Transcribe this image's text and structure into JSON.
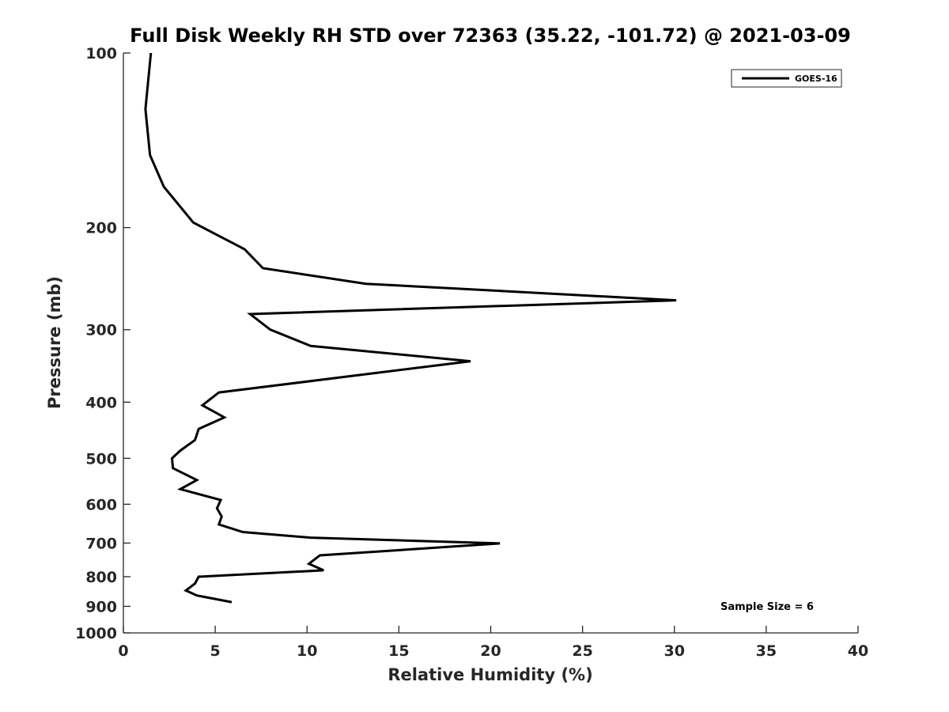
{
  "chart_data": {
    "type": "line",
    "title": "Full Disk Weekly RH STD over 72363 (35.22, -101.72) @ 2021-03-09",
    "xlabel": "Relative Humidity (%)",
    "ylabel": "Pressure (mb)",
    "xlim": [
      0,
      40
    ],
    "ylim": [
      100,
      1000
    ],
    "y_scale": "log",
    "y_reversed": true,
    "x_ticks": [
      0,
      5,
      10,
      15,
      20,
      25,
      30,
      35,
      40
    ],
    "y_ticks": [
      100,
      200,
      300,
      400,
      500,
      600,
      700,
      800,
      900,
      1000
    ],
    "grid": false,
    "legend_position": "top-right",
    "annotation": "Sample Size = 6",
    "series": [
      {
        "name": "GOES-16",
        "color": "#000000",
        "points": [
          {
            "rh": 1.5,
            "p": 100
          },
          {
            "rh": 1.2,
            "p": 125
          },
          {
            "rh": 1.45,
            "p": 150
          },
          {
            "rh": 2.2,
            "p": 170
          },
          {
            "rh": 3.8,
            "p": 196
          },
          {
            "rh": 6.6,
            "p": 218
          },
          {
            "rh": 7.6,
            "p": 235
          },
          {
            "rh": 13.2,
            "p": 250
          },
          {
            "rh": 30.1,
            "p": 267
          },
          {
            "rh": 6.9,
            "p": 282
          },
          {
            "rh": 8.0,
            "p": 300
          },
          {
            "rh": 10.2,
            "p": 320
          },
          {
            "rh": 18.9,
            "p": 340
          },
          {
            "rh": 12.6,
            "p": 360
          },
          {
            "rh": 5.2,
            "p": 385
          },
          {
            "rh": 4.3,
            "p": 405
          },
          {
            "rh": 5.5,
            "p": 425
          },
          {
            "rh": 4.1,
            "p": 445
          },
          {
            "rh": 3.9,
            "p": 465
          },
          {
            "rh": 3.1,
            "p": 485
          },
          {
            "rh": 2.65,
            "p": 500
          },
          {
            "rh": 2.7,
            "p": 520
          },
          {
            "rh": 4.0,
            "p": 545
          },
          {
            "rh": 3.1,
            "p": 565
          },
          {
            "rh": 5.3,
            "p": 590
          },
          {
            "rh": 5.1,
            "p": 610
          },
          {
            "rh": 5.35,
            "p": 630
          },
          {
            "rh": 5.2,
            "p": 650
          },
          {
            "rh": 6.5,
            "p": 670
          },
          {
            "rh": 10.2,
            "p": 685
          },
          {
            "rh": 20.5,
            "p": 701
          },
          {
            "rh": 10.7,
            "p": 735
          },
          {
            "rh": 10.1,
            "p": 760
          },
          {
            "rh": 10.9,
            "p": 780
          },
          {
            "rh": 4.1,
            "p": 800
          },
          {
            "rh": 3.9,
            "p": 822
          },
          {
            "rh": 3.4,
            "p": 845
          },
          {
            "rh": 4.0,
            "p": 862
          },
          {
            "rh": 5.9,
            "p": 885
          }
        ]
      }
    ]
  }
}
